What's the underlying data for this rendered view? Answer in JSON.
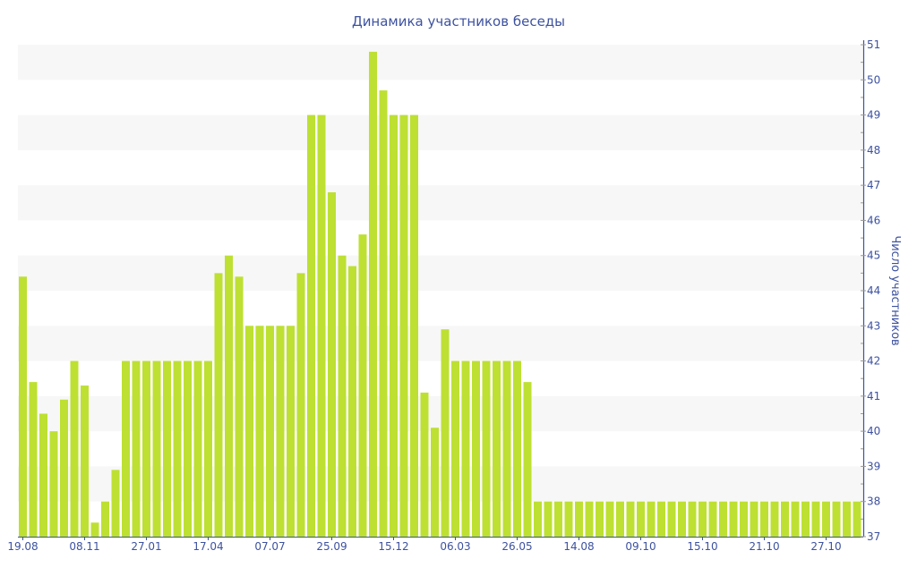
{
  "chart_data": {
    "type": "bar",
    "title": "Динамика участников беседы",
    "xlabel": "",
    "ylabel": "Число участников",
    "ylim": [
      37,
      51
    ],
    "yticks": [
      37,
      38,
      39,
      40,
      41,
      42,
      43,
      44,
      45,
      46,
      47,
      48,
      49,
      50,
      51
    ],
    "y_axis_side": "right",
    "grid": "alternating horizontal bands",
    "x_tick_labels": [
      "19.08",
      "08.11",
      "27.01",
      "17.04",
      "07.07",
      "25.09",
      "15.12",
      "06.03",
      "26.05",
      "14.08",
      "09.10",
      "15.10",
      "21.10",
      "27.10"
    ],
    "x_tick_every": 6,
    "values": [
      44.4,
      41.4,
      40.5,
      40,
      40.9,
      42,
      41.3,
      37.4,
      38,
      38.9,
      42,
      42,
      42,
      42,
      42,
      42,
      42,
      42,
      42,
      44.5,
      45,
      44.4,
      43,
      43,
      43,
      43,
      43,
      44.5,
      49,
      49,
      46.8,
      45,
      44.7,
      45.6,
      50.8,
      49.7,
      49,
      49,
      49,
      41.1,
      40.1,
      42.9,
      42,
      42,
      42,
      42,
      42,
      42,
      42,
      41.4,
      38,
      38,
      38,
      38,
      38,
      38,
      38,
      38,
      38,
      38,
      38,
      38,
      38,
      38,
      38,
      38,
      38,
      38,
      38,
      38,
      38,
      38,
      38,
      38,
      38,
      38,
      38,
      38,
      38,
      38,
      38,
      38
    ],
    "colors": {
      "bar": "#bde032",
      "axis": "#3d52a0",
      "text": "#3d52a0",
      "band": "#f7f7f7"
    }
  }
}
